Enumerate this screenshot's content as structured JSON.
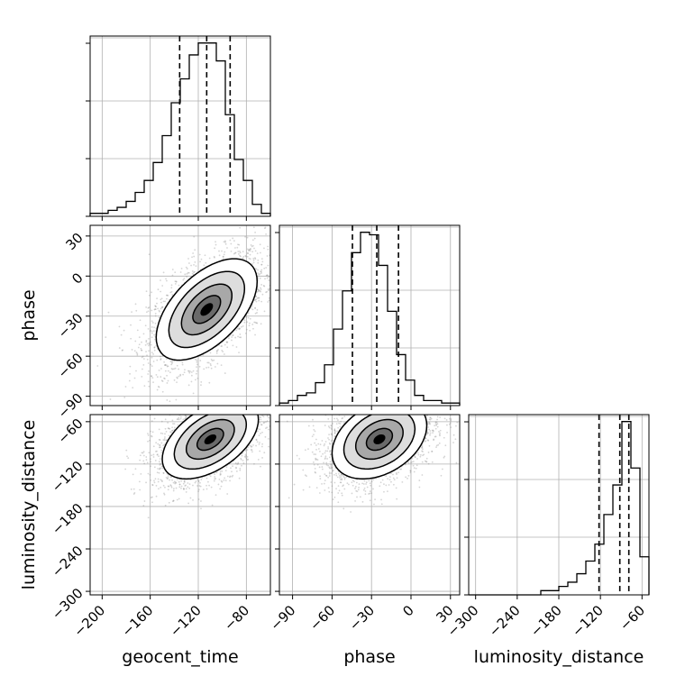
{
  "chart_data": {
    "type": "corner",
    "parameters": [
      "geocent_time",
      "phase",
      "luminosity_distance"
    ],
    "grid": true,
    "quantile_lines": "dashed",
    "marginals": [
      {
        "name": "geocent_time",
        "xlim": [
          -210,
          -60
        ],
        "bin_edges": [
          -210,
          -202.5,
          -195,
          -187.5,
          -180,
          -172.5,
          -165,
          -157.5,
          -150,
          -142.5,
          -135,
          -127.5,
          -120,
          -112.5,
          -105,
          -97.5,
          -90,
          -82.5,
          -75,
          -67.5,
          -60
        ],
        "counts": [
          1,
          1,
          2,
          3,
          5,
          8,
          12,
          18,
          27,
          38,
          46,
          54,
          58,
          58,
          52,
          34,
          19,
          12,
          4,
          1
        ],
        "quantiles": [
          -135.5,
          -113,
          -93.5
        ]
      },
      {
        "name": "phase",
        "xlim": [
          -100,
          37
        ],
        "bin_edges": [
          -100,
          -93.15,
          -86.3,
          -79.45,
          -72.6,
          -65.75,
          -58.9,
          -52.05,
          -45.2,
          -38.35,
          -31.5,
          -24.65,
          -17.8,
          -10.95,
          -4.1,
          2.75,
          9.6,
          16.45,
          23.3,
          30.15,
          37
        ],
        "counts": [
          1,
          2,
          4,
          5,
          9,
          16,
          30,
          45,
          60,
          68,
          67,
          55,
          37,
          20,
          10,
          4,
          2,
          2,
          1,
          1
        ],
        "quantiles": [
          -44.5,
          -26,
          -9.5
        ]
      },
      {
        "name": "luminosity_distance",
        "xlim": [
          -310,
          -50
        ],
        "bin_edges": [
          -310,
          -297,
          -284,
          -271,
          -258,
          -245,
          -232,
          -219,
          -206,
          -193,
          -180,
          -167,
          -154,
          -141,
          -128,
          -115,
          -102,
          -89,
          -76,
          -63,
          -50
        ],
        "counts": [
          0,
          0,
          0,
          0,
          0,
          0,
          0,
          0,
          1,
          1,
          2,
          3,
          5,
          8,
          12,
          19,
          26,
          41,
          30,
          9
        ],
        "quantiles": [
          -122,
          -92,
          -79
        ]
      }
    ],
    "joint": [
      {
        "x": "geocent_time",
        "y": "phase",
        "xlim": [
          -210,
          -60
        ],
        "ylim": [
          -97,
          38
        ],
        "mean": [
          -113,
          -25
        ],
        "sd": [
          21,
          19
        ],
        "rho": 0.55,
        "samples": 2600
      },
      {
        "x": "geocent_time",
        "y": "luminosity_distance",
        "xlim": [
          -210,
          -60
        ],
        "ylim": [
          -305,
          -50
        ],
        "mean": [
          -110,
          -85
        ],
        "sd": [
          20,
          28
        ],
        "rho": 0.5,
        "samples": 2600
      },
      {
        "x": "phase",
        "y": "luminosity_distance",
        "xlim": [
          -100,
          37
        ],
        "ylim": [
          -305,
          -50
        ],
        "mean": [
          -24,
          -85
        ],
        "sd": [
          18,
          28
        ],
        "rho": 0.35,
        "samples": 2600
      }
    ],
    "axes_text": {
      "xlabels": [
        "geocent_time",
        "phase",
        "luminosity_distance"
      ],
      "ylabels": [
        "phase",
        "luminosity_distance"
      ],
      "x_ticks": [
        [
          -200,
          -160,
          -120,
          -80
        ],
        [
          -90,
          -60,
          -30,
          0,
          30
        ],
        [
          -300,
          -240,
          -180,
          -120,
          -60
        ]
      ],
      "y_ticks": [
        [
          30,
          0,
          -30,
          -60,
          -90
        ],
        [
          -60,
          -120,
          -180,
          -240,
          -300
        ]
      ]
    }
  }
}
